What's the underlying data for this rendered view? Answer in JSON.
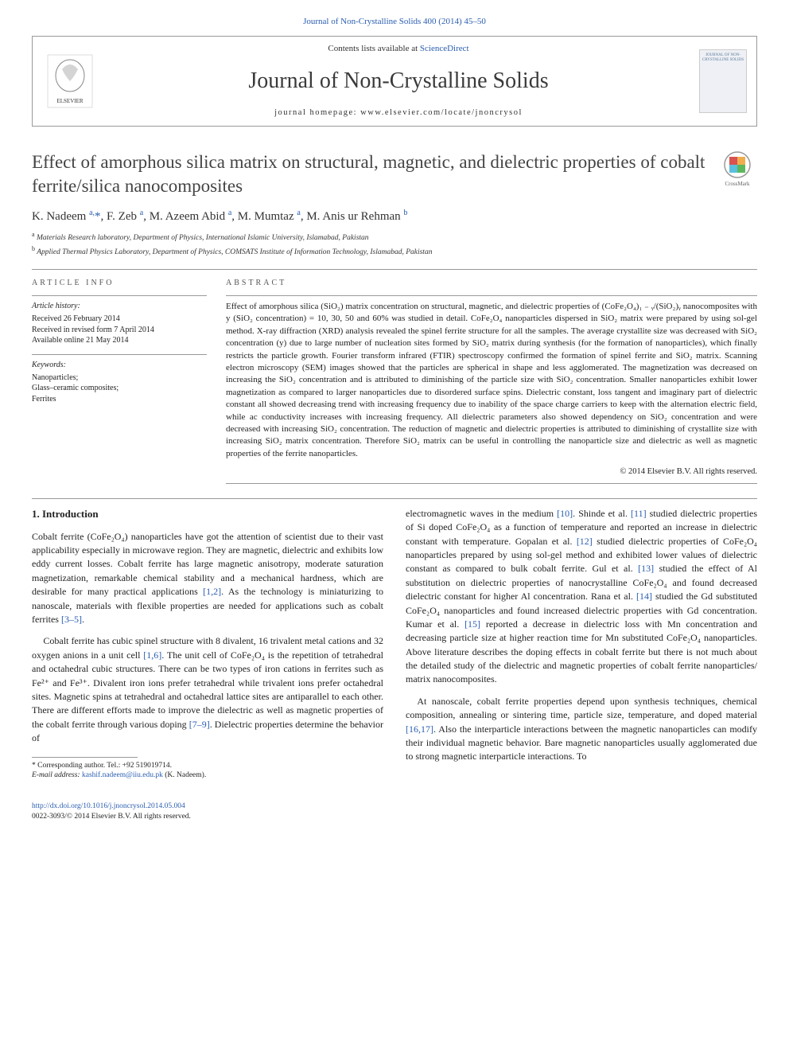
{
  "top_link": "Journal of Non-Crystalline Solids 400 (2014) 45–50",
  "header": {
    "contents_prefix": "Contents lists available at ",
    "contents_link": "ScienceDirect",
    "journal_name": "Journal of Non-Crystalline Solids",
    "homepage": "journal homepage: www.elsevier.com/locate/jnoncrysol",
    "cover_caption": "JOURNAL OF NON-CRYSTALLINE SOLIDS"
  },
  "article": {
    "title": "Effect of amorphous silica matrix on structural, magnetic, and dielectric properties of cobalt ferrite/silica nanocomposites",
    "crossmark_label": "CrossMark",
    "authors_html": "K. Nadeem <sup>a,</sup><span class='asterisk'>*</span>, F. Zeb <sup>a</sup>, M. Azeem Abid <sup>a</sup>, M. Mumtaz <sup>a</sup>, M. Anis ur Rehman <sup>b</sup>",
    "affiliations": [
      {
        "sup": "a",
        "text": "Materials Research laboratory, Department of Physics, International Islamic University, Islamabad, Pakistan"
      },
      {
        "sup": "b",
        "text": "Applied Thermal Physics Laboratory, Department of Physics, COMSATS Institute of Information Technology, Islamabad, Pakistan"
      }
    ]
  },
  "info": {
    "label": "ARTICLE INFO",
    "history_heading": "Article history:",
    "history_lines": [
      "Received 26 February 2014",
      "Received in revised form 7 April 2014",
      "Available online 21 May 2014"
    ],
    "keywords_heading": "Keywords:",
    "keywords": [
      "Nanoparticles;",
      "Glass–ceramic composites;",
      "Ferrites"
    ]
  },
  "abstract": {
    "label": "ABSTRACT",
    "text": "Effect of amorphous silica (SiO₂) matrix concentration on structural, magnetic, and dielectric properties of (CoFe₂O₄)₁ ₋ ᵧ/(SiO₂)ᵧ nanocomposites with y (SiO₂ concentration) = 10, 30, 50 and 60% was studied in detail. CoFe₂O₄ nanoparticles dispersed in SiO₂ matrix were prepared by using sol-gel method. X-ray diffraction (XRD) analysis revealed the spinel ferrite structure for all the samples. The average crystallite size was decreased with SiO₂ concentration (y) due to large number of nucleation sites formed by SiO₂ matrix during synthesis (for the formation of nanoparticles), which finally restricts the particle growth. Fourier transform infrared (FTIR) spectroscopy confirmed the formation of spinel ferrite and SiO₂ matrix. Scanning electron microscopy (SEM) images showed that the particles are spherical in shape and less agglomerated. The magnetization was decreased on increasing the SiO₂ concentration and is attributed to diminishing of the particle size with SiO₂ concentration. Smaller nanoparticles exhibit lower magnetization as compared to larger nanoparticles due to disordered surface spins. Dielectric constant, loss tangent and imaginary part of dielectric constant all showed decreasing trend with increasing frequency due to inability of the space charge carriers to keep with the alternation electric field, while ac conductivity increases with increasing frequency. All dielectric parameters also showed dependency on SiO₂ concentration and were decreased with increasing SiO₂ concentration. The reduction of magnetic and dielectric properties is attributed to diminishing of crystallite size with increasing SiO₂ matrix concentration. Therefore SiO₂ matrix can be useful in controlling the nanoparticle size and dielectric as well as magnetic properties of the ferrite nanoparticles.",
    "copyright": "© 2014 Elsevier B.V. All rights reserved."
  },
  "body": {
    "section_heading": "1. Introduction",
    "left_paras": [
      "Cobalt ferrite (CoFe₂O₄) nanoparticles have got the attention of scientist due to their vast applicability especially in microwave region. They are magnetic, dielectric and exhibits low eddy current losses. Cobalt ferrite has large magnetic anisotropy, moderate saturation magnetization, remarkable chemical stability and a mechanical hardness, which are desirable for many practical applications [1,2]. As the technology is miniaturizing to nanoscale, materials with flexible properties are needed for applications such as cobalt ferrites [3–5].",
      "Cobalt ferrite has cubic spinel structure with 8 divalent, 16 trivalent metal cations and 32 oxygen anions in a unit cell [1,6]. The unit cell of CoFe₂O₄ is the repetition of tetrahedral and octahedral cubic structures. There can be two types of iron cations in ferrites such as Fe²⁺ and Fe³⁺. Divalent iron ions prefer tetrahedral while trivalent ions prefer octahedral sites. Magnetic spins at tetrahedral and octahedral lattice sites are antiparallel to each other. There are different efforts made to improve the dielectric as well as magnetic properties of the cobalt ferrite through various doping [7–9]. Dielectric properties determine the behavior of"
    ],
    "right_paras": [
      "electromagnetic waves in the medium [10]. Shinde et al. [11] studied dielectric properties of Si doped CoFe₂O₄ as a function of temperature and reported an increase in dielectric constant with temperature. Gopalan et al. [12] studied dielectric properties of CoFe₂O₄ nanoparticles prepared by using sol-gel method and exhibited lower values of dielectric constant as compared to bulk cobalt ferrite. Gul et al. [13] studied the effect of Al substitution on dielectric properties of nanocrystalline CoFe₂O₄ and found decreased dielectric constant for higher Al concentration. Rana et al. [14] studied the Gd substituted CoFe₂O₄ nanoparticles and found increased dielectric properties with Gd concentration. Kumar et al. [15] reported a decrease in dielectric loss with Mn concentration and decreasing particle size at higher reaction time for Mn substituted CoFe₂O₄ nanoparticles. Above literature describes the doping effects in cobalt ferrite but there is not much about the detailed study of the dielectric and magnetic properties of cobalt ferrite nanoparticles/ matrix nanocomposites.",
      "At nanoscale, cobalt ferrite properties depend upon synthesis techniques, chemical composition, annealing or sintering time, particle size, temperature, and doped material [16,17]. Also the interparticle interactions between the magnetic nanoparticles can modify their individual magnetic behavior. Bare magnetic nanoparticles usually agglomerated due to strong magnetic interparticle interactions. To"
    ],
    "refs_in_text": {
      "12": "[1,2]",
      "35": "[3–5]",
      "16": "[1,6]",
      "79": "[7–9]",
      "10": "[10]",
      "11": "[11]",
      "r12": "[12]",
      "13": "[13]",
      "14": "[14]",
      "15": "[15]",
      "1617": "[16,17]"
    }
  },
  "footnote": {
    "corr": "* Corresponding author. Tel.: +92 519019714.",
    "email_label": "E-mail address: ",
    "email": "kashif.nadeem@iiu.edu.pk",
    "email_suffix": " (K. Nadeem)."
  },
  "footer": {
    "doi": "http://dx.doi.org/10.1016/j.jnoncrysol.2014.05.004",
    "issn": "0022-3093/© 2014 Elsevier B.V. All rights reserved."
  },
  "colors": {
    "link": "#2a5db0",
    "text": "#222222",
    "title": "#444444",
    "border": "#999999",
    "background": "#ffffff",
    "elsevier_orange": "#ee7f2d"
  },
  "typography": {
    "body_fontsize": 12,
    "abstract_fontsize": 11,
    "title_fontsize": 23,
    "journal_fontsize": 28,
    "info_fontsize": 10,
    "footnote_fontsize": 9.5
  }
}
